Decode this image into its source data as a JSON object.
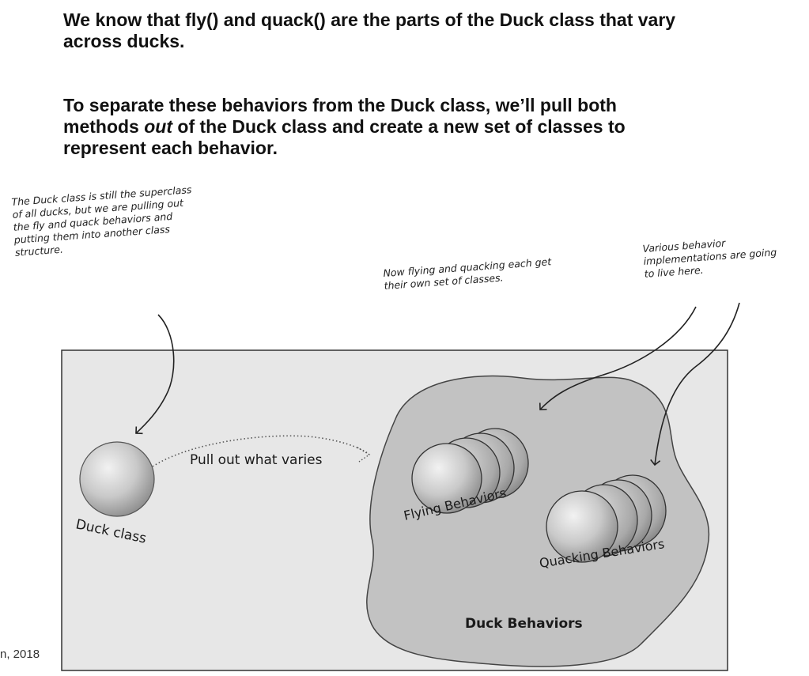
{
  "heading": {
    "line1": "We know that fly() and quack() are the parts of the Duck class that vary across ducks.",
    "line2_pre": "To separate these behaviors from the Duck class, we’ll pull both methods ",
    "line2_em": "out",
    "line2_post": " of the Duck class and create a new set of classes to represent each behavior."
  },
  "notes": {
    "left": "The Duck class is still the superclass\nof all ducks, but we are pulling out\nthe fly and quack behaviors and\nputting them into another class\nstructure.",
    "middle": "Now flying and quacking each get\ntheir own set of classes.",
    "right": "Various behavior\nimplementations are going\nto live here."
  },
  "diagram": {
    "duck_class": "Duck class",
    "pull_out": "Pull out what varies",
    "flying": "Flying Behaviors",
    "quacking": "Quacking Behaviors",
    "duck_behaviors": "Duck Behaviors"
  },
  "footer": "n, 2018"
}
